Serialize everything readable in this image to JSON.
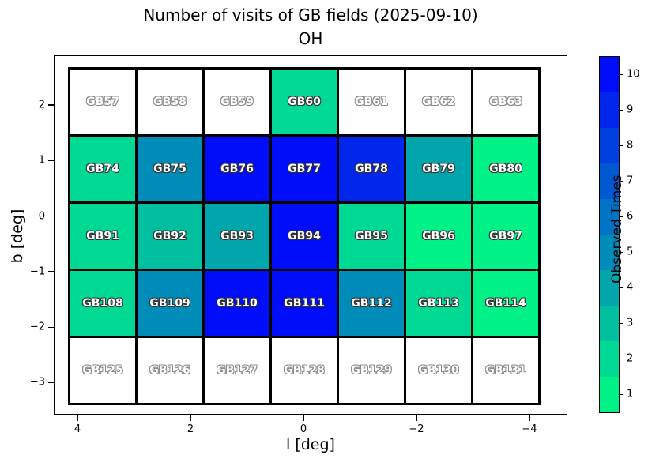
{
  "figure": {
    "title_line1": "Number of visits of GB fields (2025-09-10)",
    "title_line2": "OH",
    "background": "#ffffff"
  },
  "axes": {
    "xlabel": "l [deg]",
    "ylabel": "b [deg]",
    "xticks": [
      {
        "label": "4",
        "value": 4
      },
      {
        "label": "2",
        "value": 2
      },
      {
        "label": "0",
        "value": 0
      },
      {
        "label": "−2",
        "value": -2
      },
      {
        "label": "−4",
        "value": -4
      }
    ],
    "yticks": [
      {
        "label": "2",
        "value": 2
      },
      {
        "label": "1",
        "value": 1
      },
      {
        "label": "0",
        "value": 0
      },
      {
        "label": "−1",
        "value": -1
      },
      {
        "label": "−2",
        "value": -2
      },
      {
        "label": "−3",
        "value": -3
      }
    ]
  },
  "colorbar": {
    "label": "Observed Times",
    "ticks": [
      "1",
      "2",
      "3",
      "4",
      "5",
      "6",
      "7",
      "8",
      "9",
      "10"
    ],
    "segment_colors": [
      "#00F286",
      "#00D993",
      "#00BF9F",
      "#00A6AC",
      "#008CB9",
      "#0073C6",
      "#0059D2",
      "#0040DF",
      "#0026EC",
      "#000DF9"
    ],
    "unobserved_color": "#ffffff"
  },
  "text_outline": {
    "on_colored": "#333333",
    "on_white": "#8c8c8c"
  },
  "chart_data": {
    "type": "heatmap",
    "title": "Number of visits of GB fields (2025-09-10) OH",
    "xlabel": "l [deg]",
    "ylabel": "b [deg]",
    "colorbar_label": "Observed Times",
    "value_range": [
      1,
      10
    ],
    "colormap": "winter_r, 10 discrete levels; null (unobserved) rendered white",
    "xlim": [
      4.4,
      -4.7
    ],
    "ylim": [
      -3.6,
      2.9
    ],
    "l_centers": [
      3.6,
      2.4,
      1.2,
      0.0,
      -1.2,
      -2.4,
      -3.6
    ],
    "b_centers": [
      2.0,
      0.8,
      -0.4,
      -1.6,
      -2.8
    ],
    "rows": [
      {
        "b_center": 2.0,
        "fields": [
          {
            "name": "GB57",
            "visits": null
          },
          {
            "name": "GB58",
            "visits": null
          },
          {
            "name": "GB59",
            "visits": null
          },
          {
            "name": "GB60",
            "visits": 2
          },
          {
            "name": "GB61",
            "visits": null
          },
          {
            "name": "GB62",
            "visits": null
          },
          {
            "name": "GB63",
            "visits": null
          }
        ]
      },
      {
        "b_center": 0.8,
        "fields": [
          {
            "name": "GB74",
            "visits": 2
          },
          {
            "name": "GB75",
            "visits": 5
          },
          {
            "name": "GB76",
            "visits": 10
          },
          {
            "name": "GB77",
            "visits": 10
          },
          {
            "name": "GB78",
            "visits": 9
          },
          {
            "name": "GB79",
            "visits": 4
          },
          {
            "name": "GB80",
            "visits": 1
          }
        ]
      },
      {
        "b_center": -0.4,
        "fields": [
          {
            "name": "GB91",
            "visits": 2
          },
          {
            "name": "GB92",
            "visits": 3
          },
          {
            "name": "GB93",
            "visits": 4
          },
          {
            "name": "GB94",
            "visits": 10
          },
          {
            "name": "GB95",
            "visits": 2
          },
          {
            "name": "GB96",
            "visits": 1
          },
          {
            "name": "GB97",
            "visits": 1
          }
        ]
      },
      {
        "b_center": -1.6,
        "fields": [
          {
            "name": "GB108",
            "visits": 2
          },
          {
            "name": "GB109",
            "visits": 5
          },
          {
            "name": "GB110",
            "visits": 10
          },
          {
            "name": "GB111",
            "visits": 10
          },
          {
            "name": "GB112",
            "visits": 5
          },
          {
            "name": "GB113",
            "visits": 2
          },
          {
            "name": "GB114",
            "visits": 1
          }
        ]
      },
      {
        "b_center": -2.8,
        "fields": [
          {
            "name": "GB125",
            "visits": null
          },
          {
            "name": "GB126",
            "visits": null
          },
          {
            "name": "GB127",
            "visits": null
          },
          {
            "name": "GB128",
            "visits": null
          },
          {
            "name": "GB129",
            "visits": null
          },
          {
            "name": "GB130",
            "visits": null
          },
          {
            "name": "GB131",
            "visits": null
          }
        ]
      }
    ]
  }
}
